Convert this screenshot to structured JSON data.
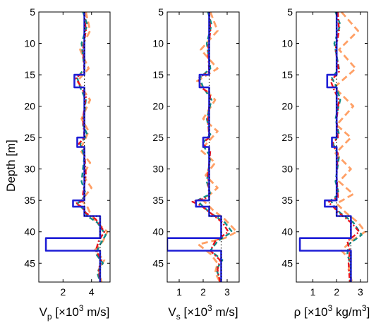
{
  "figure": {
    "ylabel": "Depth [m]"
  },
  "colors": {
    "true_model": "#1f1fd6",
    "initial_model": "#111111",
    "red_estimate": "#e8141e",
    "teal_estimate": "#0e8c86",
    "orange_estimate": "#ffa066"
  },
  "chart_data": [
    {
      "type": "line",
      "xlabel": {
        "main": "V",
        "sub": "p",
        "pre": " [×10",
        "sup": "3",
        "post": " m/s]"
      },
      "ylabel": "Depth [m]",
      "xlim": [
        0.3,
        5.3
      ],
      "ylim": [
        5,
        48
      ],
      "y_reversed": true,
      "xticks": [
        2,
        4
      ],
      "yticks": [
        5,
        10,
        15,
        20,
        25,
        30,
        35,
        40,
        45
      ],
      "series": [
        {
          "role": "true",
          "style": "solid",
          "color": "#1f1fd6",
          "x": [
            3.5,
            3.5,
            2.8,
            2.8,
            3.5,
            3.5,
            3.0,
            3.0,
            3.5,
            3.5,
            2.7,
            2.7,
            3.5,
            3.5,
            4.6,
            4.6,
            0.8,
            0.8,
            4.6,
            4.6
          ],
          "y": [
            5,
            15,
            15,
            17,
            17,
            25,
            25,
            26.5,
            26.5,
            35,
            35,
            36,
            36,
            37.5,
            37.5,
            41,
            41,
            43,
            43,
            48
          ]
        },
        {
          "role": "initial",
          "style": "dotted",
          "color": "#111111",
          "x": [
            3.5,
            3.5,
            4.6,
            4.6
          ],
          "y": [
            5,
            37.5,
            37.5,
            48
          ]
        },
        {
          "role": "estimate",
          "style": "dashdot",
          "color": "#e8141e",
          "x": [
            3.5,
            3.6,
            3.4,
            3.5,
            2.9,
            3.3,
            3.6,
            3.4,
            3.5,
            3.1,
            3.5,
            3.6,
            3.4,
            3.5,
            2.9,
            3.3,
            3.6,
            4.3,
            4.9,
            4.5,
            4.3,
            4.7,
            4.5,
            4.6
          ],
          "y": [
            5,
            8,
            11,
            14.5,
            15.5,
            17,
            18.5,
            22,
            25,
            26,
            27,
            31,
            34,
            35,
            35.5,
            36,
            37,
            38,
            40,
            41.5,
            43,
            44.5,
            46,
            48
          ]
        },
        {
          "role": "estimate",
          "style": "dashed",
          "color": "#0e8c86",
          "x": [
            3.4,
            3.7,
            3.3,
            3.5,
            3.0,
            3.2,
            3.6,
            3.4,
            3.7,
            3.2,
            3.5,
            3.3,
            3.6,
            3.3,
            3.0,
            3.5,
            3.7,
            4.4,
            5.0,
            4.6,
            4.3,
            4.8,
            4.4,
            4.6
          ],
          "y": [
            5,
            7,
            10,
            14,
            15.5,
            17,
            19,
            23,
            24.5,
            26,
            28,
            32,
            34,
            35,
            35.5,
            36.5,
            37.5,
            38.5,
            40.5,
            42,
            43.5,
            45,
            46.5,
            48
          ]
        },
        {
          "role": "estimate",
          "style": "dashed-wide",
          "color": "#ffa066",
          "x": [
            3.6,
            3.9,
            3.2,
            3.8,
            3.0,
            3.9,
            3.3,
            3.8,
            3.2,
            3.9,
            3.4,
            4.0,
            3.3,
            3.7,
            3.9,
            4.2,
            4.6,
            5.1,
            4.8,
            4.2,
            4.9,
            4.5,
            4.7
          ],
          "y": [
            5,
            8,
            11,
            14,
            16,
            19,
            22,
            24,
            27,
            29,
            31,
            33,
            35,
            36,
            37,
            38,
            39,
            40,
            41.5,
            43,
            44.5,
            46,
            48
          ]
        }
      ]
    },
    {
      "type": "line",
      "xlabel": {
        "main": "V",
        "sub": "s",
        "pre": " [×10",
        "sup": "3",
        "post": " m/s]"
      },
      "xlim": [
        0.5,
        3.5
      ],
      "ylim": [
        5,
        48
      ],
      "y_reversed": true,
      "xticks": [
        1,
        2,
        3
      ],
      "yticks": [
        5,
        10,
        15,
        20,
        25,
        30,
        35,
        40,
        45
      ],
      "series": [
        {
          "role": "true",
          "style": "solid",
          "color": "#1f1fd6",
          "x": [
            2.25,
            2.25,
            1.85,
            1.85,
            2.25,
            2.25,
            2.0,
            2.0,
            2.25,
            2.25,
            1.7,
            1.7,
            2.25,
            2.25,
            2.75,
            2.75,
            0.5,
            0.5,
            2.75,
            2.75
          ],
          "y": [
            5,
            15,
            15,
            17,
            17,
            25,
            25,
            26.5,
            26.5,
            35,
            35,
            36,
            36,
            37.5,
            37.5,
            41,
            41,
            43,
            43,
            48
          ]
        },
        {
          "role": "initial",
          "style": "dotted",
          "color": "#111111",
          "x": [
            2.25,
            2.25,
            2.75,
            2.75
          ],
          "y": [
            5,
            37.5,
            37.5,
            48
          ]
        },
        {
          "role": "estimate",
          "style": "dashdot",
          "color": "#e8141e",
          "x": [
            2.25,
            2.3,
            2.2,
            2.25,
            1.8,
            1.9,
            2.3,
            2.2,
            2.25,
            1.95,
            2.3,
            2.2,
            2.25,
            1.55,
            1.9,
            2.3,
            2.8,
            3.05,
            2.5,
            2.3,
            2.7,
            2.6,
            2.7
          ],
          "y": [
            5,
            8,
            11,
            14.5,
            15.5,
            17,
            18,
            22,
            25,
            26,
            27,
            31,
            34.5,
            35.2,
            35.8,
            37,
            38.5,
            40,
            41.5,
            43,
            44.5,
            46,
            48
          ]
        },
        {
          "role": "estimate",
          "style": "dashed",
          "color": "#0e8c86",
          "x": [
            2.2,
            2.35,
            2.15,
            2.3,
            1.85,
            2.0,
            2.35,
            2.15,
            2.3,
            1.95,
            2.3,
            2.15,
            2.3,
            1.75,
            2.0,
            2.3,
            2.9,
            3.2,
            2.6,
            2.3,
            2.8,
            2.55,
            2.75
          ],
          "y": [
            5,
            7,
            10,
            14,
            15.5,
            17,
            19,
            22,
            24.5,
            26,
            28,
            32,
            34,
            35,
            36,
            37,
            38.5,
            40,
            41.5,
            43,
            44.5,
            46,
            48
          ]
        },
        {
          "role": "estimate",
          "style": "dashed-wide",
          "color": "#ffa066",
          "x": [
            2.3,
            2.6,
            1.9,
            2.6,
            1.75,
            2.5,
            2.0,
            2.6,
            1.9,
            2.5,
            2.1,
            2.6,
            2.0,
            2.4,
            2.9,
            3.4,
            2.9,
            1.8,
            2.3,
            2.6,
            2.5,
            2.7
          ],
          "y": [
            5,
            8,
            11,
            14,
            16,
            19,
            22,
            24,
            27,
            29,
            31,
            33,
            35,
            36.5,
            38,
            40,
            41,
            42,
            43.5,
            45,
            46.5,
            48
          ]
        }
      ]
    },
    {
      "type": "line",
      "xlabel": {
        "main": "ρ",
        "sub": "",
        "pre": " [×10",
        "sup": "3",
        "post": " kg/m",
        "sup2": "3",
        "post2": "]"
      },
      "xlim": [
        0.3,
        3.3
      ],
      "ylim": [
        5,
        48
      ],
      "y_reversed": true,
      "xticks": [
        1,
        2,
        3
      ],
      "yticks": [
        5,
        10,
        15,
        20,
        25,
        30,
        35,
        40,
        45
      ],
      "series": [
        {
          "role": "true",
          "style": "solid",
          "color": "#1f1fd6",
          "x": [
            2.0,
            2.0,
            1.6,
            1.6,
            2.0,
            2.0,
            1.8,
            1.8,
            2.0,
            2.0,
            1.5,
            1.5,
            2.0,
            2.0,
            2.6,
            2.6,
            0.45,
            0.45,
            2.6,
            2.6
          ],
          "y": [
            5,
            15,
            15,
            17,
            17,
            25,
            25,
            26.5,
            26.5,
            35,
            35,
            36,
            36,
            37.5,
            37.5,
            41,
            41,
            43,
            43,
            48
          ]
        },
        {
          "role": "initial",
          "style": "dotted",
          "color": "#111111",
          "x": [
            2.0,
            2.0,
            2.6,
            2.6
          ],
          "y": [
            5,
            37.5,
            37.5,
            48
          ]
        },
        {
          "role": "estimate",
          "style": "dashdot",
          "color": "#e8141e",
          "x": [
            2.05,
            2.1,
            1.95,
            2.1,
            1.75,
            1.9,
            2.1,
            2.0,
            2.05,
            1.8,
            2.05,
            2.0,
            2.05,
            1.65,
            1.85,
            2.1,
            2.6,
            2.95,
            2.45,
            2.55,
            2.5,
            2.55
          ],
          "y": [
            5,
            8,
            11,
            14.5,
            16,
            17.5,
            19,
            22,
            25,
            26,
            27.5,
            31,
            34.5,
            35.3,
            36,
            37,
            38.5,
            40,
            41.5,
            43,
            45,
            48
          ]
        },
        {
          "role": "estimate",
          "style": "dashed",
          "color": "#0e8c86",
          "x": [
            1.95,
            2.15,
            1.9,
            2.1,
            1.8,
            2.0,
            2.15,
            1.95,
            2.1,
            1.85,
            2.1,
            1.95,
            2.1,
            1.75,
            1.9,
            2.15,
            2.7,
            3.05,
            2.5,
            2.45,
            2.6,
            2.55
          ],
          "y": [
            5,
            7,
            10,
            14,
            15.5,
            17,
            19,
            22,
            24.5,
            26,
            28,
            32,
            34,
            35,
            36,
            37,
            38.5,
            40.5,
            42,
            43.5,
            45.5,
            48
          ]
        },
        {
          "role": "estimate",
          "style": "dashed-wide",
          "color": "#ffa066",
          "x": [
            2.2,
            2.9,
            2.1,
            2.8,
            1.9,
            2.7,
            2.0,
            2.6,
            1.95,
            2.6,
            2.1,
            2.7,
            2.0,
            2.4,
            2.9,
            3.2,
            2.6,
            2.2,
            2.6,
            2.5,
            2.65
          ],
          "y": [
            5,
            8,
            11,
            14,
            17,
            20,
            23,
            25,
            27.5,
            30,
            32,
            34,
            35.5,
            37,
            38.5,
            40,
            41.5,
            43,
            44.5,
            46,
            48
          ]
        }
      ]
    }
  ]
}
